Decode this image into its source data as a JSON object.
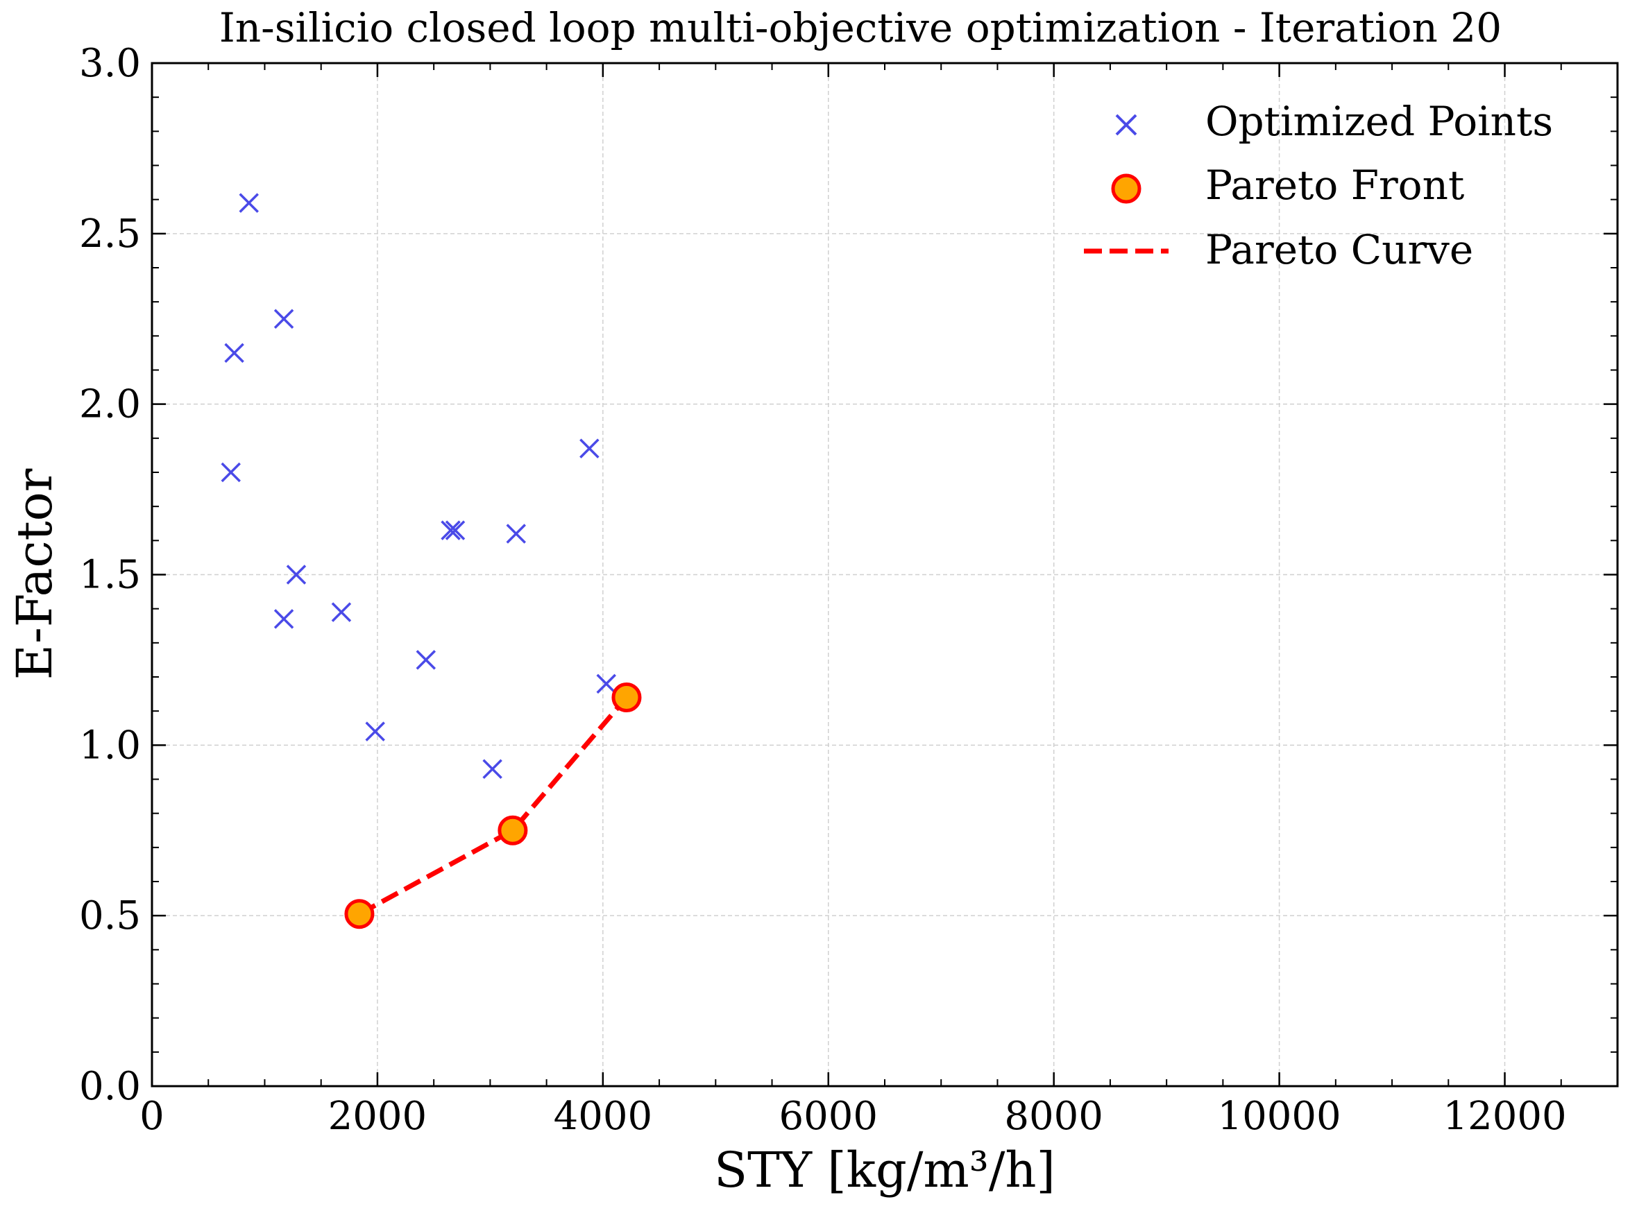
{
  "chart_data": {
    "type": "scatter",
    "title": "In-silicio closed loop multi-objective optimization - Iteration 20",
    "xlabel": "STY [kg/m³/h]",
    "ylabel": "E-Factor",
    "xlim": [
      0,
      13000
    ],
    "ylim": [
      0,
      3.0
    ],
    "xticks": [
      0,
      2000,
      4000,
      6000,
      8000,
      10000,
      12000
    ],
    "yticks": [
      0.0,
      0.5,
      1.0,
      1.5,
      2.0,
      2.5,
      3.0
    ],
    "grid": true,
    "legend_position": "top-right",
    "series": [
      {
        "name": "Optimized Points",
        "marker": "x",
        "color": "#4a4ae8",
        "points": [
          {
            "x": 860,
            "y": 2.59
          },
          {
            "x": 1170,
            "y": 2.25
          },
          {
            "x": 730,
            "y": 2.15
          },
          {
            "x": 700,
            "y": 1.8
          },
          {
            "x": 3880,
            "y": 1.87
          },
          {
            "x": 2650,
            "y": 1.63
          },
          {
            "x": 2690,
            "y": 1.63
          },
          {
            "x": 3230,
            "y": 1.62
          },
          {
            "x": 1280,
            "y": 1.5
          },
          {
            "x": 1680,
            "y": 1.39
          },
          {
            "x": 1170,
            "y": 1.37
          },
          {
            "x": 2430,
            "y": 1.25
          },
          {
            "x": 4030,
            "y": 1.18
          },
          {
            "x": 1980,
            "y": 1.04
          },
          {
            "x": 3020,
            "y": 0.93
          }
        ]
      },
      {
        "name": "Pareto Front",
        "marker": "circle",
        "color": "#ffa500",
        "edge_color": "#ff0000",
        "points": [
          {
            "x": 1840,
            "y": 0.505
          },
          {
            "x": 3200,
            "y": 0.75
          },
          {
            "x": 4210,
            "y": 1.14
          }
        ]
      },
      {
        "name": "Pareto Curve",
        "marker": "dashed-line",
        "color": "#ff0000",
        "points": [
          {
            "x": 1840,
            "y": 0.505
          },
          {
            "x": 3200,
            "y": 0.75
          },
          {
            "x": 4210,
            "y": 1.14
          }
        ]
      }
    ]
  }
}
